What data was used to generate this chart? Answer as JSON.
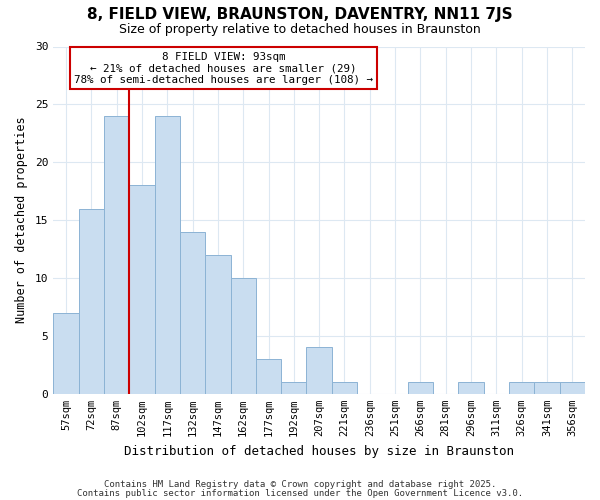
{
  "title": "8, FIELD VIEW, BRAUNSTON, DAVENTRY, NN11 7JS",
  "subtitle": "Size of property relative to detached houses in Braunston",
  "xlabel": "Distribution of detached houses by size in Braunston",
  "ylabel": "Number of detached properties",
  "bar_labels": [
    "57sqm",
    "72sqm",
    "87sqm",
    "102sqm",
    "117sqm",
    "132sqm",
    "147sqm",
    "162sqm",
    "177sqm",
    "192sqm",
    "207sqm",
    "221sqm",
    "236sqm",
    "251sqm",
    "266sqm",
    "281sqm",
    "296sqm",
    "311sqm",
    "326sqm",
    "341sqm",
    "356sqm"
  ],
  "bar_values": [
    7,
    16,
    24,
    18,
    24,
    14,
    12,
    10,
    3,
    1,
    4,
    1,
    0,
    0,
    1,
    0,
    1,
    0,
    1,
    1,
    1
  ],
  "bar_color": "#c9ddf0",
  "bar_edge_color": "#8cb3d4",
  "ylim": [
    0,
    30
  ],
  "yticks": [
    0,
    5,
    10,
    15,
    20,
    25,
    30
  ],
  "annotation_title": "8 FIELD VIEW: 93sqm",
  "annotation_line1": "← 21% of detached houses are smaller (29)",
  "annotation_line2": "78% of semi-detached houses are larger (108) →",
  "vline_color": "#cc0000",
  "annotation_box_edge": "#cc0000",
  "footer1": "Contains HM Land Registry data © Crown copyright and database right 2025.",
  "footer2": "Contains public sector information licensed under the Open Government Licence v3.0.",
  "background_color": "#ffffff",
  "grid_color": "#dde8f2",
  "vline_bar_index": 2
}
